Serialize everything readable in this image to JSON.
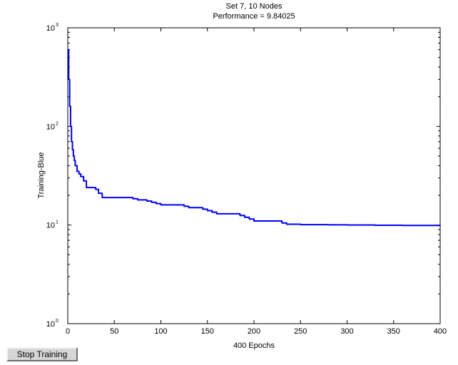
{
  "chart_data": {
    "type": "line",
    "title": "Set 7, 10 Nodes",
    "subtitle": "Performance = 9.84025",
    "xlabel": "400 Epochs",
    "ylabel": "Training-Blue",
    "xlim": [
      0,
      400
    ],
    "ylim": [
      1,
      1000
    ],
    "y_scale": "log",
    "grid": false,
    "x_ticks": [
      0,
      50,
      100,
      150,
      200,
      250,
      300,
      350,
      400
    ],
    "y_ticks": [
      {
        "value": 1,
        "base": "10",
        "exp": "0"
      },
      {
        "value": 10,
        "base": "10",
        "exp": "1"
      },
      {
        "value": 100,
        "base": "10",
        "exp": "2"
      },
      {
        "value": 1000,
        "base": "10",
        "exp": "3"
      }
    ],
    "series": [
      {
        "color": "#0000ff",
        "x": [
          0,
          1,
          2,
          3,
          4,
          5,
          6,
          7,
          8,
          10,
          12,
          14,
          17,
          20,
          22,
          26,
          30,
          33,
          37,
          40,
          48,
          55,
          62,
          70,
          75,
          80,
          85,
          90,
          95,
          100,
          110,
          120,
          125,
          130,
          140,
          145,
          150,
          155,
          160,
          170,
          180,
          185,
          190,
          195,
          200,
          215,
          225,
          230,
          235,
          250,
          280,
          300,
          330,
          360,
          400
        ],
        "y": [
          600,
          300,
          160,
          100,
          70,
          58,
          50,
          45,
          40,
          35,
          33,
          31,
          28,
          24,
          24,
          24,
          23,
          21,
          19,
          19,
          19,
          19,
          19,
          18.5,
          18,
          18,
          17.5,
          17,
          16.5,
          16,
          16,
          16,
          15.5,
          15,
          15,
          14.5,
          14,
          13.5,
          13,
          13,
          13,
          12.5,
          12,
          11.5,
          11,
          11,
          11,
          10.5,
          10.2,
          10.1,
          10.05,
          10.0,
          9.95,
          9.9,
          9.84
        ]
      }
    ]
  },
  "controls": {
    "stop_label": "Stop Training"
  }
}
